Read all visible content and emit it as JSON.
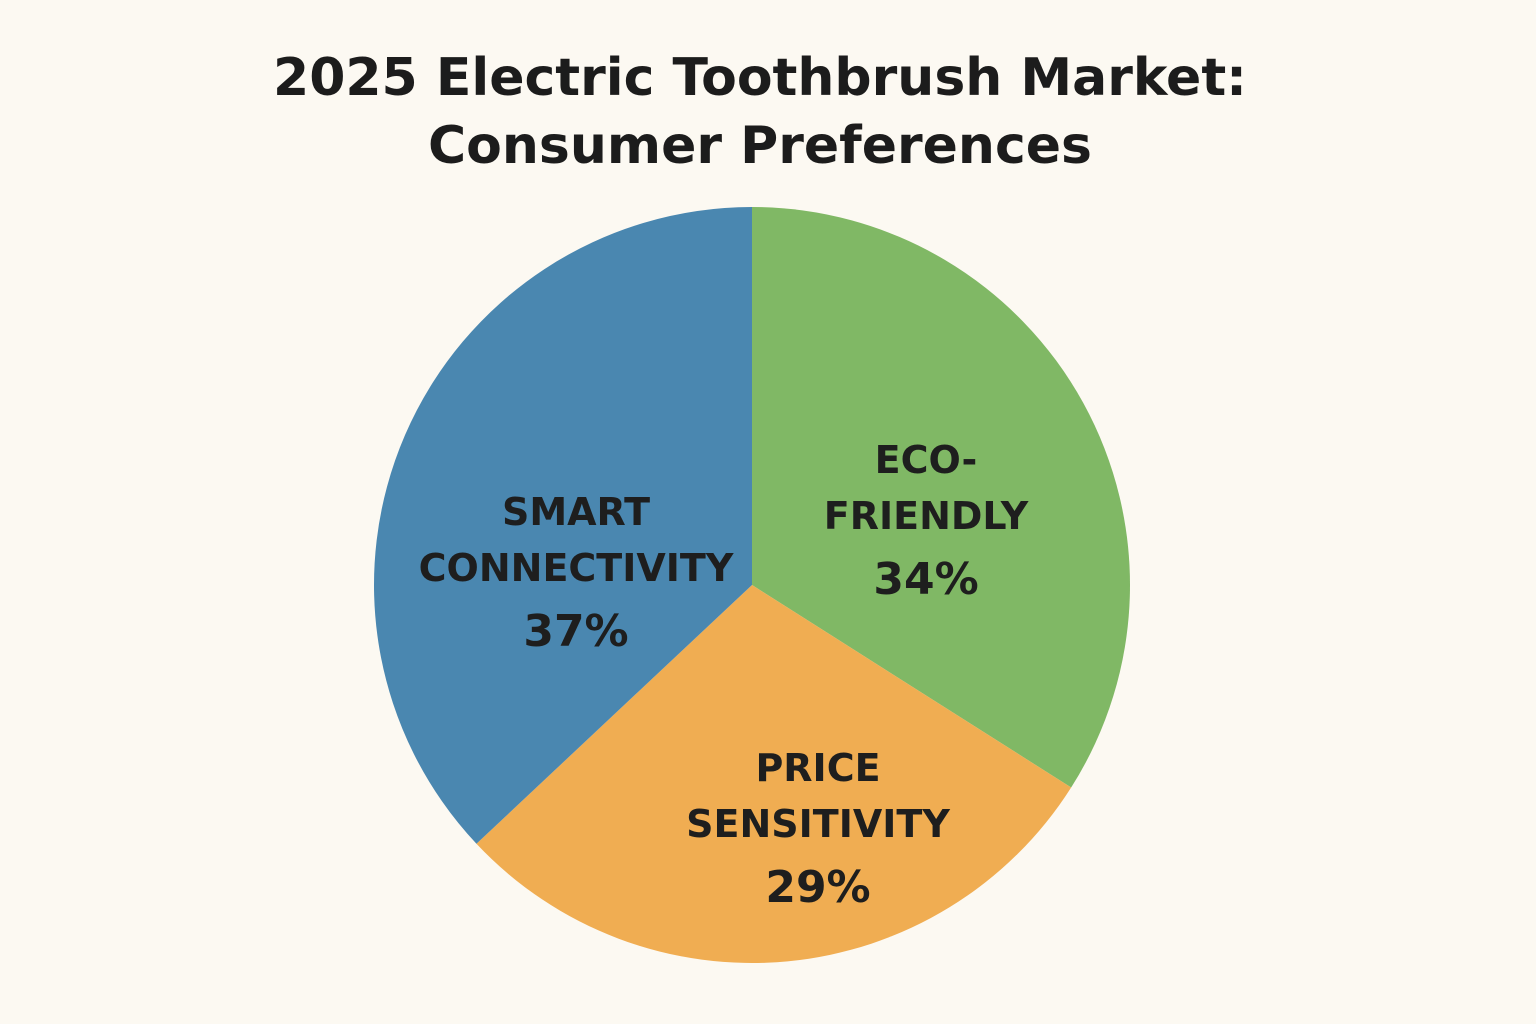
{
  "chart_data": {
    "type": "pie",
    "title_line1": "2025 Electric Toothbrush Market:",
    "title_line2": "Consumer Preferences",
    "start": "top",
    "direction": "clockwise",
    "slices": [
      {
        "label": "ECO-\nFRIENDLY",
        "value": 34,
        "value_label": "34%",
        "color": "#80b865"
      },
      {
        "label": "PRICE\nSENSITIVITY",
        "value": 29,
        "value_label": "29%",
        "color": "#f0ad52"
      },
      {
        "label": "SMART\nCONNECTIVITY",
        "value": 37,
        "value_label": "37%",
        "color": "#4a87b0"
      }
    ]
  }
}
